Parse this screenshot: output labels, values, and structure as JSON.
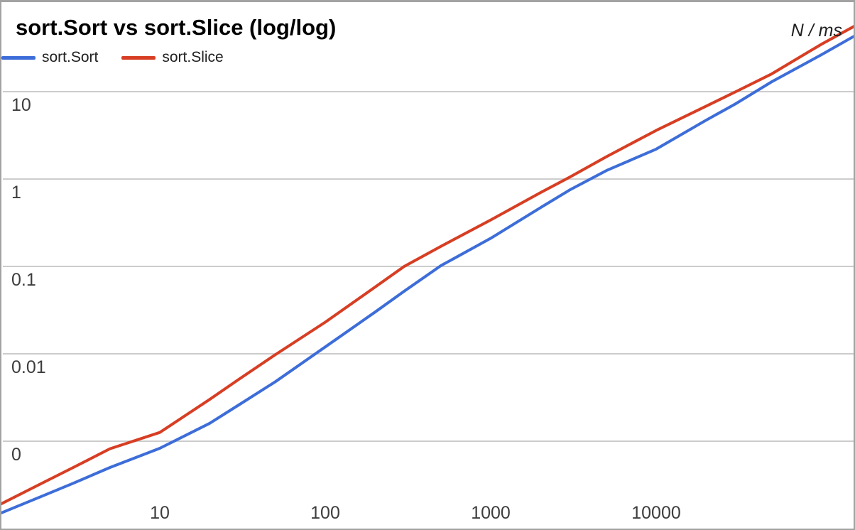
{
  "header": {
    "title": "sort.Sort vs sort.Slice (log/log)",
    "axis_unit_label": "N / ms"
  },
  "legend": {
    "position": "top-left",
    "items": [
      {
        "label": "sort.Sort",
        "color": "#3d6dd8"
      },
      {
        "label": "sort.Slice",
        "color": "#d73e23"
      }
    ]
  },
  "colors": {
    "background": "#ffffff",
    "border": "#a2a2a2",
    "gridline": "#cccccc",
    "tick_label": "#3d3d3d",
    "title": "#000000",
    "series_blue": "#3d6dd8",
    "series_red": "#d73e23"
  },
  "chart_data": {
    "type": "line",
    "title": "sort.Sort vs sort.Slice (log/log)",
    "xlabel": "N",
    "ylabel": "ms",
    "x_scale": "log",
    "y_scale": "log",
    "grid": "horizontal-only",
    "legend_position": "top-left",
    "xlim": [
      1,
      160000
    ],
    "ylim": [
      0.0001,
      60
    ],
    "x_ticks": {
      "values": [
        10,
        100,
        1000,
        10000
      ],
      "labels": [
        "10",
        "100",
        "1000",
        "10000"
      ]
    },
    "y_ticks": {
      "values": [
        10,
        1,
        0.1,
        0.01,
        0.001
      ],
      "labels": [
        "10",
        "1",
        "0.1",
        "0.01",
        "0"
      ]
    },
    "x": [
      1,
      2,
      3,
      5,
      10,
      20,
      30,
      50,
      100,
      200,
      300,
      500,
      1000,
      2000,
      3000,
      5000,
      10000,
      20000,
      30000,
      50000,
      100000,
      160000
    ],
    "series": [
      {
        "name": "sort.Sort",
        "color": "#3d6dd8",
        "values": [
          0.00014,
          0.00024,
          0.00033,
          0.0005,
          0.00083,
          0.0016,
          0.0026,
          0.0048,
          0.012,
          0.03,
          0.052,
          0.102,
          0.21,
          0.47,
          0.75,
          1.25,
          2.2,
          4.7,
          7.2,
          13,
          26.5,
          44
        ]
      },
      {
        "name": "sort.Slice",
        "color": "#d73e23",
        "values": [
          0.000175,
          0.00034,
          0.0005,
          0.00082,
          0.00126,
          0.003,
          0.0051,
          0.0098,
          0.023,
          0.058,
          0.1,
          0.17,
          0.34,
          0.7,
          1.05,
          1.8,
          3.6,
          6.8,
          9.9,
          16,
          35,
          57
        ]
      }
    ]
  }
}
